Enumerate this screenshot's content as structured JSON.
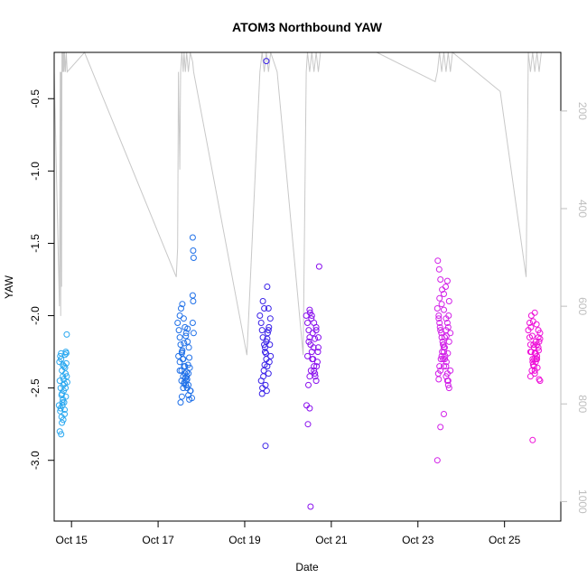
{
  "chart_data": {
    "type": "scatter",
    "title": "ATOM3 Northbound YAW",
    "xlabel": "Date",
    "ylabel": "YAW",
    "y2label": "",
    "xlim": [
      14.6,
      26.3
    ],
    "ylim": [
      -3.42,
      -0.18
    ],
    "y2lim": [
      1040,
      80
    ],
    "x_ticks": [
      {
        "value": 15,
        "label": "Oct 15"
      },
      {
        "value": 17,
        "label": "Oct 17"
      },
      {
        "value": 19,
        "label": "Oct 19"
      },
      {
        "value": 21,
        "label": "Oct 21"
      },
      {
        "value": 23,
        "label": "Oct 23"
      },
      {
        "value": 25,
        "label": "Oct 25"
      }
    ],
    "y_ticks": [
      {
        "value": -0.5,
        "label": "-0.5"
      },
      {
        "value": -1.0,
        "label": "-1.0"
      },
      {
        "value": -1.5,
        "label": "-1.5"
      },
      {
        "value": -2.0,
        "label": "-2.0"
      },
      {
        "value": -2.5,
        "label": "-2.5"
      },
      {
        "value": -3.0,
        "label": "-3.0"
      }
    ],
    "y2_ticks": [
      {
        "value": 200,
        "label": "200"
      },
      {
        "value": 400,
        "label": "400"
      },
      {
        "value": 600,
        "label": "600"
      },
      {
        "value": 800,
        "label": "800"
      },
      {
        "value": 1000,
        "label": "1000"
      }
    ],
    "grid": false,
    "legend": "none",
    "line_color": "#c8c8c8",
    "series": [
      {
        "color": "#2aa8f0",
        "x": [
          14.72,
          14.74,
          14.76,
          14.78,
          14.8,
          14.73,
          14.75,
          14.77,
          14.79,
          14.81,
          14.83,
          14.85,
          14.87,
          14.89,
          14.71,
          14.74,
          14.77,
          14.8,
          14.82,
          14.84,
          14.86,
          14.88,
          14.75,
          14.78,
          14.81,
          14.84,
          14.87,
          14.9,
          14.73,
          14.76,
          14.79,
          14.82,
          14.85,
          14.88,
          14.78,
          14.83,
          14.86,
          14.89,
          14.76,
          14.8,
          14.84
        ],
        "y": [
          -2.32,
          -2.28,
          -2.26,
          -2.38,
          -2.42,
          -2.45,
          -2.5,
          -2.55,
          -2.6,
          -2.48,
          -2.35,
          -2.27,
          -2.25,
          -2.13,
          -2.62,
          -2.66,
          -2.7,
          -2.58,
          -2.52,
          -2.47,
          -2.4,
          -2.33,
          -2.64,
          -2.74,
          -2.72,
          -2.68,
          -2.56,
          -2.46,
          -2.8,
          -2.82,
          -2.62,
          -2.44,
          -2.36,
          -2.26,
          -2.54,
          -2.6,
          -2.5,
          -2.42,
          -2.3,
          -2.34,
          -2.65
        ]
      },
      {
        "color": "#1f70e8",
        "x": [
          17.45,
          17.48,
          17.5,
          17.52,
          17.55,
          17.57,
          17.6,
          17.62,
          17.65,
          17.67,
          17.7,
          17.72,
          17.75,
          17.5,
          17.53,
          17.56,
          17.59,
          17.62,
          17.65,
          17.68,
          17.71,
          17.47,
          17.5,
          17.54,
          17.58,
          17.61,
          17.64,
          17.67,
          17.7,
          17.73,
          17.52,
          17.55,
          17.58,
          17.6,
          17.63,
          17.66,
          17.69,
          17.72,
          17.56,
          17.6,
          17.64,
          17.68,
          17.8,
          17.81,
          17.82,
          17.8,
          17.81,
          17.8,
          17.82,
          17.55,
          17.58,
          17.62,
          17.66,
          17.7,
          17.74,
          17.78,
          17.5,
          17.54
        ],
        "y": [
          -2.05,
          -2.1,
          -2.15,
          -2.2,
          -2.25,
          -2.3,
          -2.35,
          -2.4,
          -2.45,
          -2.5,
          -2.55,
          -2.58,
          -2.52,
          -2.0,
          -1.95,
          -1.92,
          -2.02,
          -2.08,
          -2.12,
          -2.18,
          -2.22,
          -2.28,
          -2.32,
          -2.38,
          -2.42,
          -2.46,
          -2.48,
          -2.44,
          -2.4,
          -2.36,
          -2.6,
          -2.56,
          -2.5,
          -2.47,
          -2.43,
          -2.39,
          -2.34,
          -2.29,
          -2.24,
          -2.19,
          -2.14,
          -2.09,
          -1.46,
          -1.55,
          -1.6,
          -1.86,
          -1.9,
          -2.05,
          -2.12,
          -2.26,
          -2.3,
          -2.35,
          -2.42,
          -2.48,
          -2.52,
          -2.57,
          -2.38,
          -2.45
        ]
      },
      {
        "color": "#3a22e8",
        "x": [
          19.35,
          19.38,
          19.4,
          19.42,
          19.45,
          19.47,
          19.5,
          19.52,
          19.55,
          19.57,
          19.6,
          19.38,
          19.41,
          19.44,
          19.47,
          19.5,
          19.53,
          19.56,
          19.59,
          19.4,
          19.43,
          19.46,
          19.49,
          19.52,
          19.55,
          19.58,
          19.42,
          19.45,
          19.48,
          19.51,
          19.5,
          19.52,
          19.55,
          19.48
        ],
        "y": [
          -2.0,
          -2.05,
          -2.1,
          -2.15,
          -2.2,
          -2.25,
          -2.3,
          -2.35,
          -2.4,
          -2.32,
          -2.28,
          -2.45,
          -2.5,
          -2.38,
          -2.22,
          -2.18,
          -2.12,
          -2.08,
          -2.02,
          -2.54,
          -2.42,
          -2.34,
          -2.26,
          -2.16,
          -2.1,
          -2.2,
          -1.9,
          -1.95,
          -2.48,
          -2.52,
          -0.24,
          -1.8,
          -1.95,
          -2.9
        ]
      },
      {
        "color": "#8a10ee",
        "x": [
          20.42,
          20.45,
          20.48,
          20.5,
          20.52,
          20.55,
          20.58,
          20.6,
          20.62,
          20.65,
          20.68,
          20.7,
          20.45,
          20.48,
          20.51,
          20.54,
          20.57,
          20.6,
          20.63,
          20.66,
          20.69,
          20.47,
          20.5,
          20.53,
          20.56,
          20.59,
          20.62,
          20.65,
          20.5,
          20.55,
          20.6,
          20.65,
          20.7,
          20.43,
          20.46,
          20.5,
          20.72,
          20.52
        ],
        "y": [
          -2.0,
          -2.05,
          -2.1,
          -2.15,
          -2.2,
          -2.25,
          -2.3,
          -2.35,
          -2.4,
          -2.45,
          -2.32,
          -2.22,
          -2.28,
          -2.18,
          -1.98,
          -2.02,
          -2.12,
          -2.38,
          -2.42,
          -2.35,
          -2.25,
          -2.48,
          -2.42,
          -2.38,
          -2.3,
          -2.22,
          -2.16,
          -2.08,
          -1.96,
          -2.0,
          -2.05,
          -2.1,
          -2.15,
          -2.62,
          -2.75,
          -2.64,
          -1.66,
          -3.32
        ]
      },
      {
        "color": "#d220e8",
        "x": [
          23.45,
          23.48,
          23.5,
          23.52,
          23.55,
          23.58,
          23.6,
          23.62,
          23.65,
          23.68,
          23.7,
          23.72,
          23.75,
          23.48,
          23.51,
          23.54,
          23.57,
          23.6,
          23.63,
          23.66,
          23.69,
          23.72,
          23.47,
          23.5,
          23.53,
          23.56,
          23.59,
          23.62,
          23.65,
          23.68,
          23.71,
          23.5,
          23.55,
          23.6,
          23.65,
          23.7,
          23.75,
          23.46,
          23.49,
          23.52,
          23.56,
          23.6,
          23.64,
          23.68,
          23.72,
          23.55,
          23.6,
          23.65,
          23.7,
          23.48,
          23.52,
          23.58,
          23.62,
          23.66,
          23.45,
          23.52,
          23.6,
          23.68
        ],
        "y": [
          -1.95,
          -2.0,
          -2.05,
          -2.1,
          -2.15,
          -2.2,
          -2.25,
          -2.3,
          -2.35,
          -2.4,
          -2.45,
          -2.5,
          -2.38,
          -2.02,
          -2.08,
          -2.12,
          -2.18,
          -2.22,
          -2.28,
          -2.32,
          -2.26,
          -2.18,
          -2.4,
          -2.35,
          -2.3,
          -2.25,
          -2.2,
          -2.15,
          -2.1,
          -2.05,
          -2.0,
          -1.88,
          -1.92,
          -1.96,
          -2.02,
          -2.08,
          -2.12,
          -1.62,
          -1.68,
          -1.75,
          -1.82,
          -1.85,
          -1.8,
          -1.76,
          -1.9,
          -2.28,
          -2.35,
          -2.42,
          -2.48,
          -2.44,
          -2.38,
          -2.3,
          -2.22,
          -2.14,
          -3.0,
          -2.77,
          -2.68,
          -2.45
        ]
      },
      {
        "color": "#ee10d8",
        "x": [
          25.55,
          25.58,
          25.6,
          25.62,
          25.65,
          25.68,
          25.7,
          25.72,
          25.75,
          25.78,
          25.8,
          25.82,
          25.58,
          25.61,
          25.64,
          25.67,
          25.7,
          25.73,
          25.76,
          25.79,
          25.82,
          25.6,
          25.63,
          25.66,
          25.69,
          25.72,
          25.75,
          25.78,
          25.62,
          25.66,
          25.7,
          25.74,
          25.78,
          25.6,
          25.65,
          25.7,
          25.75,
          25.8,
          25.68,
          25.72,
          25.82,
          25.65
        ],
        "y": [
          -2.1,
          -2.15,
          -2.2,
          -2.25,
          -2.3,
          -2.35,
          -2.4,
          -2.32,
          -2.28,
          -2.22,
          -2.18,
          -2.12,
          -2.05,
          -2.08,
          -2.14,
          -2.2,
          -2.26,
          -2.3,
          -2.36,
          -2.24,
          -2.16,
          -2.42,
          -2.38,
          -2.34,
          -2.3,
          -2.26,
          -2.2,
          -2.15,
          -2.0,
          -2.04,
          -1.98,
          -2.06,
          -2.1,
          -2.25,
          -2.32,
          -2.38,
          -2.3,
          -2.44,
          -2.22,
          -2.18,
          -2.45,
          -2.86
        ]
      }
    ],
    "trace": {
      "x": [
        14.6,
        14.72,
        14.74,
        14.75,
        14.76,
        14.77,
        14.78,
        14.79,
        14.8,
        14.81,
        14.82,
        14.83,
        14.84,
        14.86,
        14.88,
        14.9,
        15.3,
        17.42,
        17.45,
        17.47,
        17.5,
        17.52,
        17.55,
        17.58,
        17.6,
        17.63,
        17.66,
        17.7,
        17.74,
        17.8,
        17.82,
        19.05,
        19.35,
        19.4,
        19.45,
        19.5,
        19.55,
        19.6,
        19.75,
        20.35,
        20.42,
        20.45,
        20.5,
        20.55,
        20.6,
        20.65,
        20.7,
        20.75,
        22.05,
        23.4,
        23.45,
        23.5,
        23.55,
        23.6,
        23.65,
        23.7,
        23.75,
        23.8,
        24.9,
        25.5,
        25.55,
        25.6,
        25.65,
        25.7,
        25.75,
        25.8,
        25.85
      ],
      "y2": [
        120,
        600,
        120,
        620,
        120,
        560,
        80,
        120,
        80,
        120,
        80,
        120,
        80,
        120,
        80,
        120,
        80,
        540,
        480,
        120,
        320,
        120,
        80,
        120,
        80,
        120,
        80,
        120,
        80,
        100,
        120,
        700,
        120,
        80,
        120,
        80,
        120,
        80,
        120,
        700,
        120,
        80,
        120,
        80,
        120,
        80,
        120,
        80,
        80,
        140,
        120,
        80,
        120,
        80,
        120,
        80,
        120,
        80,
        160,
        540,
        80,
        120,
        80,
        120,
        80,
        120,
        80
      ]
    }
  }
}
